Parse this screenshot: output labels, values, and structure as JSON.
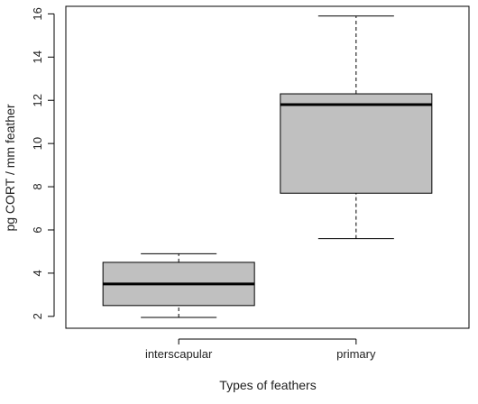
{
  "chart_data": {
    "type": "box",
    "title": "",
    "xlabel": "Types of feathers",
    "ylabel": "pg CORT / mm feather",
    "ylim": [
      1.45,
      16.35
    ],
    "yticks": [
      2,
      4,
      6,
      8,
      10,
      12,
      14,
      16
    ],
    "grid": false,
    "legend": "none",
    "box_color": "#c0c0c0",
    "stroke_color": "#000000",
    "categories": [
      "interscapular",
      "primary"
    ],
    "boxes": [
      {
        "category": "interscapular",
        "min": 1.95,
        "q1": 2.5,
        "median": 3.5,
        "q3": 4.5,
        "max": 4.9
      },
      {
        "category": "primary",
        "min": 5.6,
        "q1": 7.7,
        "median": 11.8,
        "q3": 12.3,
        "max": 15.9
      }
    ]
  }
}
